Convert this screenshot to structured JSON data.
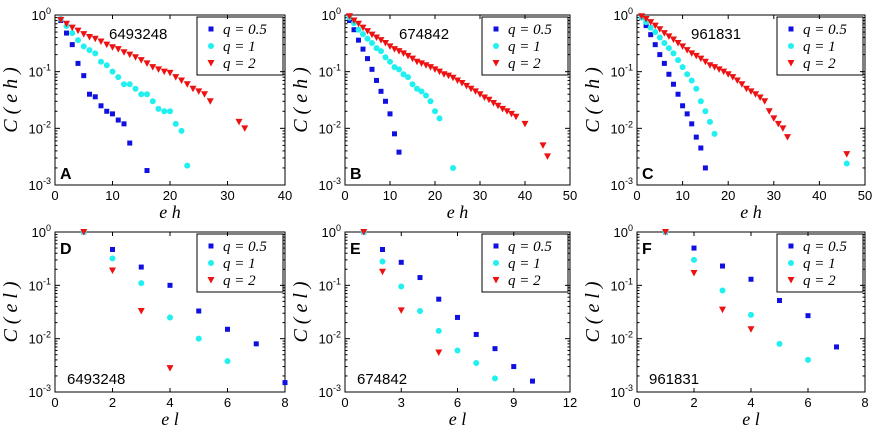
{
  "colors": {
    "q05": "#1010e0",
    "q1": "#20f0f0",
    "q2": "#ee1111"
  },
  "legend": [
    "q = 0.5",
    "q = 1",
    "q = 2"
  ],
  "chart_data": [
    {
      "type": "scatter",
      "panel": "A",
      "id_label": "6493248",
      "yscale": "log",
      "xlabel": "e h",
      "ylabel": "C ( e h )",
      "xlim": [
        0,
        40
      ],
      "ylim": [
        0.001,
        1
      ],
      "xticks": [
        0,
        10,
        20,
        30,
        40
      ],
      "series": [
        {
          "name": "q = 0.5",
          "x": [
            1,
            2,
            3,
            4,
            5,
            6,
            7,
            8,
            9,
            10,
            11,
            12,
            13,
            16
          ],
          "y": [
            0.8,
            0.48,
            0.3,
            0.14,
            0.085,
            0.04,
            0.036,
            0.025,
            0.02,
            0.018,
            0.014,
            0.012,
            0.0055,
            0.0018
          ]
        },
        {
          "name": "q = 1",
          "x": [
            1,
            2,
            3,
            4,
            5,
            6,
            7,
            8,
            9,
            10,
            11,
            12,
            13,
            14,
            15,
            16,
            17,
            18,
            19,
            20,
            21,
            22,
            23
          ],
          "y": [
            0.85,
            0.64,
            0.48,
            0.36,
            0.28,
            0.24,
            0.21,
            0.15,
            0.13,
            0.1,
            0.08,
            0.06,
            0.06,
            0.05,
            0.04,
            0.04,
            0.03,
            0.022,
            0.02,
            0.02,
            0.012,
            0.009,
            0.0022
          ]
        },
        {
          "name": "q = 2",
          "x": [
            1,
            2,
            3,
            4,
            5,
            6,
            7,
            8,
            9,
            10,
            11,
            12,
            13,
            14,
            15,
            16,
            17,
            18,
            19,
            20,
            21,
            22,
            23,
            24,
            25,
            26,
            27,
            32,
            33
          ],
          "y": [
            0.82,
            0.7,
            0.6,
            0.53,
            0.46,
            0.41,
            0.38,
            0.34,
            0.3,
            0.27,
            0.25,
            0.22,
            0.2,
            0.18,
            0.16,
            0.14,
            0.12,
            0.11,
            0.1,
            0.095,
            0.08,
            0.07,
            0.06,
            0.05,
            0.045,
            0.04,
            0.03,
            0.013,
            0.01
          ]
        }
      ]
    },
    {
      "type": "scatter",
      "panel": "B",
      "id_label": "674842",
      "yscale": "log",
      "xlabel": "e h",
      "ylabel": "C ( e h )",
      "xlim": [
        0,
        50
      ],
      "ylim": [
        0.001,
        1
      ],
      "xticks": [
        0,
        10,
        20,
        30,
        40,
        50
      ],
      "series": [
        {
          "name": "q = 0.5",
          "x": [
            1,
            2,
            3,
            4,
            5,
            6,
            7,
            8,
            9,
            10,
            11,
            12
          ],
          "y": [
            0.8,
            0.55,
            0.36,
            0.25,
            0.17,
            0.11,
            0.07,
            0.045,
            0.03,
            0.018,
            0.008,
            0.0038
          ]
        },
        {
          "name": "q = 1",
          "x": [
            1,
            2,
            3,
            4,
            5,
            6,
            7,
            8,
            9,
            10,
            11,
            12,
            13,
            14,
            15,
            16,
            17,
            18,
            19,
            20,
            21,
            24
          ],
          "y": [
            0.9,
            0.72,
            0.55,
            0.46,
            0.38,
            0.32,
            0.26,
            0.23,
            0.18,
            0.15,
            0.12,
            0.11,
            0.09,
            0.08,
            0.06,
            0.05,
            0.045,
            0.038,
            0.03,
            0.02,
            0.015,
            0.002
          ]
        },
        {
          "name": "q = 2",
          "x": [
            1,
            2,
            3,
            4,
            5,
            6,
            7,
            8,
            9,
            10,
            11,
            12,
            13,
            14,
            15,
            16,
            17,
            18,
            19,
            20,
            21,
            22,
            23,
            24,
            25,
            26,
            27,
            28,
            29,
            30,
            31,
            32,
            33,
            34,
            35,
            36,
            37,
            38,
            40,
            44,
            45
          ],
          "y": [
            0.95,
            0.8,
            0.7,
            0.6,
            0.52,
            0.45,
            0.4,
            0.36,
            0.32,
            0.28,
            0.25,
            0.23,
            0.21,
            0.19,
            0.17,
            0.15,
            0.14,
            0.13,
            0.12,
            0.11,
            0.1,
            0.09,
            0.085,
            0.078,
            0.07,
            0.063,
            0.056,
            0.05,
            0.045,
            0.04,
            0.035,
            0.032,
            0.028,
            0.025,
            0.022,
            0.02,
            0.018,
            0.016,
            0.012,
            0.005,
            0.0032
          ]
        }
      ]
    },
    {
      "type": "scatter",
      "panel": "C",
      "id_label": "961831",
      "yscale": "log",
      "xlabel": "e h",
      "ylabel": "C ( e h )",
      "xlim": [
        0,
        50
      ],
      "ylim": [
        0.001,
        1
      ],
      "xticks": [
        0,
        10,
        20,
        30,
        40,
        50
      ],
      "series": [
        {
          "name": "q = 0.5",
          "x": [
            1,
            2,
            3,
            4,
            5,
            6,
            7,
            8,
            9,
            10,
            11,
            12,
            13,
            14,
            15
          ],
          "y": [
            0.9,
            0.65,
            0.45,
            0.3,
            0.2,
            0.14,
            0.09,
            0.06,
            0.04,
            0.025,
            0.018,
            0.012,
            0.007,
            0.0045,
            0.002
          ]
        },
        {
          "name": "q = 1",
          "x": [
            1,
            2,
            3,
            4,
            5,
            6,
            7,
            8,
            9,
            10,
            11,
            12,
            13,
            14,
            15,
            16,
            17,
            46
          ],
          "y": [
            0.9,
            0.75,
            0.6,
            0.5,
            0.4,
            0.32,
            0.26,
            0.21,
            0.16,
            0.12,
            0.09,
            0.07,
            0.05,
            0.03,
            0.02,
            0.013,
            0.008,
            0.0024
          ]
        },
        {
          "name": "q = 2",
          "x": [
            1,
            2,
            3,
            4,
            5,
            6,
            7,
            8,
            9,
            10,
            11,
            12,
            13,
            14,
            15,
            16,
            17,
            18,
            19,
            20,
            21,
            22,
            23,
            24,
            25,
            26,
            27,
            28,
            29,
            30,
            31,
            32,
            33,
            46
          ],
          "y": [
            0.95,
            0.85,
            0.75,
            0.65,
            0.56,
            0.48,
            0.42,
            0.37,
            0.32,
            0.28,
            0.24,
            0.21,
            0.19,
            0.17,
            0.15,
            0.13,
            0.12,
            0.11,
            0.1,
            0.09,
            0.08,
            0.07,
            0.06,
            0.05,
            0.045,
            0.04,
            0.035,
            0.03,
            0.02,
            0.015,
            0.012,
            0.01,
            0.007,
            0.0035
          ]
        }
      ]
    },
    {
      "type": "scatter",
      "panel": "D",
      "id_label": "6493248",
      "yscale": "log",
      "xlabel": "e l",
      "ylabel": "C ( e l )",
      "xlim": [
        0,
        8
      ],
      "ylim": [
        0.001,
        1
      ],
      "xticks": [
        0,
        2,
        4,
        6,
        8
      ],
      "series": [
        {
          "name": "q = 0.5",
          "x": [
            1,
            2,
            3,
            4,
            5,
            6,
            7,
            8
          ],
          "y": [
            1,
            0.47,
            0.22,
            0.1,
            0.033,
            0.015,
            0.008,
            0.0015
          ]
        },
        {
          "name": "q = 1",
          "x": [
            1,
            2,
            3,
            4,
            5,
            6
          ],
          "y": [
            1,
            0.32,
            0.11,
            0.025,
            0.01,
            0.0038
          ]
        },
        {
          "name": "q = 2",
          "x": [
            1,
            2,
            3,
            4
          ],
          "y": [
            1,
            0.19,
            0.033,
            0.0028
          ]
        }
      ]
    },
    {
      "type": "scatter",
      "panel": "E",
      "id_label": "674842",
      "yscale": "log",
      "xlabel": "e l",
      "ylabel": "C ( e l )",
      "xlim": [
        0,
        12
      ],
      "ylim": [
        0.001,
        1
      ],
      "xticks": [
        0,
        3,
        6,
        9,
        12
      ],
      "series": [
        {
          "name": "q = 0.5",
          "x": [
            1,
            2,
            3,
            4,
            5,
            6,
            7,
            8,
            9,
            10
          ],
          "y": [
            1,
            0.47,
            0.27,
            0.14,
            0.055,
            0.025,
            0.012,
            0.0065,
            0.003,
            0.0016
          ]
        },
        {
          "name": "q = 1",
          "x": [
            1,
            2,
            3,
            4,
            5,
            6,
            7,
            8
          ],
          "y": [
            1,
            0.28,
            0.095,
            0.033,
            0.014,
            0.006,
            0.0035,
            0.0018
          ]
        },
        {
          "name": "q = 2",
          "x": [
            1,
            2,
            3,
            5
          ],
          "y": [
            1,
            0.18,
            0.034,
            0.0055
          ]
        }
      ]
    },
    {
      "type": "scatter",
      "panel": "F",
      "id_label": "961831",
      "yscale": "log",
      "xlabel": "e l",
      "ylabel": "C ( e l )",
      "xlim": [
        0,
        8
      ],
      "ylim": [
        0.001,
        1
      ],
      "xticks": [
        0,
        2,
        4,
        6,
        8
      ],
      "series": [
        {
          "name": "q = 0.5",
          "x": [
            1,
            2,
            3,
            4,
            5,
            6,
            7
          ],
          "y": [
            1,
            0.5,
            0.23,
            0.13,
            0.052,
            0.027,
            0.007
          ]
        },
        {
          "name": "q = 1",
          "x": [
            1,
            2,
            3,
            4,
            5,
            6
          ],
          "y": [
            1,
            0.3,
            0.08,
            0.028,
            0.008,
            0.004
          ]
        },
        {
          "name": "q = 2",
          "x": [
            1,
            2,
            3,
            4
          ],
          "y": [
            1,
            0.17,
            0.035,
            0.015
          ]
        }
      ]
    }
  ]
}
